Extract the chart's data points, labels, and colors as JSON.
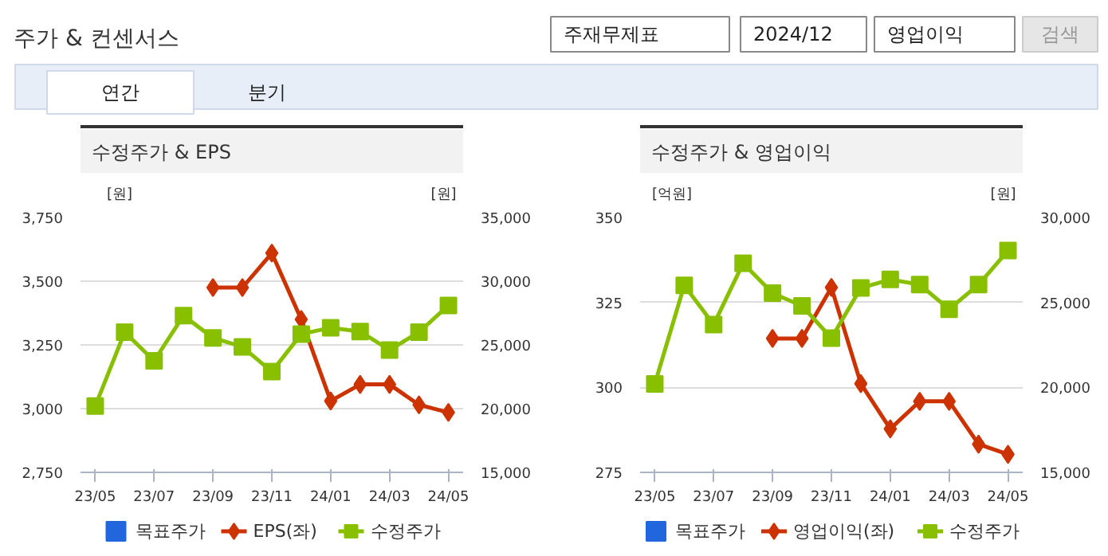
{
  "chart_data": [
    {
      "type": "other",
      "title": "주가 & 컨센서스",
      "annotations": [
        "주재무제표",
        "2024/12",
        "영업이익",
        "검색",
        "연간",
        "분기"
      ]
    },
    {
      "type": "line",
      "title": "수정주가 & EPS",
      "ylabel": "[원]",
      "y2label": "[원]",
      "categories": [
        "23/05",
        null,
        "23/07",
        null,
        "23/09",
        null,
        "23/11",
        null,
        "24/01",
        null,
        "24/03",
        null,
        "24/05"
      ],
      "series": [
        {
          "name": "목표주가",
          "type": "bar",
          "color": "#2266dd",
          "values": [
            null,
            null,
            null,
            null,
            null,
            null,
            null,
            null,
            null,
            null,
            null,
            null,
            null
          ]
        },
        {
          "name": "EPS(좌)",
          "type": "line",
          "color": "#cc3300",
          "marker": "diamond",
          "values": [
            null,
            null,
            null,
            null,
            3475,
            3475,
            3610,
            3350,
            3030,
            3095,
            3095,
            3015,
            2985
          ]
        },
        {
          "name": "수정주가",
          "type": "line",
          "color": "#88c000",
          "marker": "square",
          "axis": "y2",
          "values": [
            20200,
            26000,
            23750,
            27300,
            25550,
            24850,
            22900,
            25850,
            26350,
            26050,
            24600,
            26000,
            28100
          ]
        }
      ],
      "ylim": [
        2750,
        3750
      ],
      "yticks": [
        {
          "value": 2750,
          "label": "2,750"
        },
        {
          "value": 3000,
          "label": "3,000"
        },
        {
          "value": 3250,
          "label": "3,250"
        },
        {
          "value": 3500,
          "label": "3,500"
        },
        {
          "value": 3750,
          "label": "3,750"
        }
      ],
      "y2lim": [
        15000,
        35000
      ],
      "y2ticks": [
        {
          "value": 15000,
          "label": "15,000"
        },
        {
          "value": 20000,
          "label": "20,000"
        },
        {
          "value": 25000,
          "label": "25,000"
        },
        {
          "value": 30000,
          "label": "30,000"
        },
        {
          "value": 35000,
          "label": "35,000"
        }
      ],
      "grid": "y",
      "legend": "bottom"
    },
    {
      "type": "line",
      "title": "수정주가 & 영업이익",
      "ylabel": "[억원]",
      "y2label": "[원]",
      "categories": [
        "23/05",
        null,
        "23/07",
        null,
        "23/09",
        null,
        "23/11",
        null,
        "24/01",
        null,
        "24/03",
        null,
        "24/05"
      ],
      "series": [
        {
          "name": "목표주가",
          "type": "bar",
          "color": "#2266dd",
          "values": [
            null,
            null,
            null,
            null,
            null,
            null,
            null,
            null,
            null,
            null,
            null,
            null,
            null
          ]
        },
        {
          "name": "영업이익(좌)",
          "type": "line",
          "color": "#cc3300",
          "marker": "diamond",
          "values": [
            null,
            null,
            null,
            null,
            314.4,
            314.4,
            329.4,
            301.1,
            287.8,
            295.9,
            295.9,
            283.3,
            280.3
          ]
        },
        {
          "name": "수정주가",
          "type": "line",
          "color": "#88c000",
          "marker": "square",
          "axis": "y2",
          "values": [
            20200,
            26000,
            23700,
            27300,
            25550,
            24800,
            22900,
            25850,
            26350,
            26050,
            24600,
            26050,
            28050
          ]
        }
      ],
      "ylim": [
        275,
        350
      ],
      "yticks": [
        275,
        300,
        325,
        350
      ],
      "y2lim": [
        15000,
        30000
      ],
      "y2ticks": [
        {
          "value": 15000,
          "label": "15,000"
        },
        {
          "value": 20000,
          "label": "20,000"
        },
        {
          "value": 25000,
          "label": "25,000"
        },
        {
          "value": 30000,
          "label": "30,000"
        }
      ],
      "grid": "y",
      "legend": "bottom"
    }
  ]
}
